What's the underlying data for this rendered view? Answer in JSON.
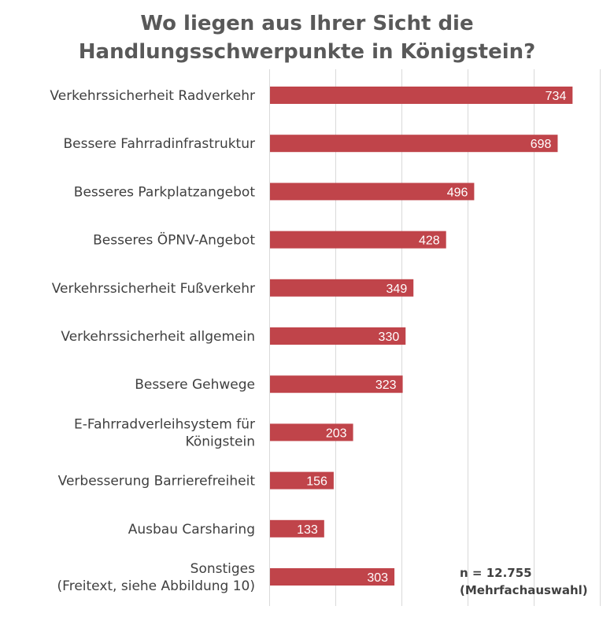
{
  "chart_data": {
    "type": "bar",
    "orientation": "horizontal",
    "title_lines": [
      "Wo liegen aus Ihrer Sicht die",
      "Handlungsschwerpunkte in Königstein?"
    ],
    "categories": [
      [
        "Verkehrssicherheit Radverkehr"
      ],
      [
        "Bessere Fahrradinfrastruktur"
      ],
      [
        "Besseres Parkplatzangebot"
      ],
      [
        "Besseres ÖPNV-Angebot"
      ],
      [
        "Verkehrssicherheit Fußverkehr"
      ],
      [
        "Verkehrssicherheit allgemein"
      ],
      [
        "Bessere Gehwege"
      ],
      [
        "E-Fahrradverleihsystem für",
        "Königstein"
      ],
      [
        "Verbesserung Barrierefreiheit"
      ],
      [
        "Ausbau Carsharing"
      ],
      [
        "Sonstiges",
        "(Freitext, siehe Abbildung 10)"
      ]
    ],
    "values": [
      734,
      698,
      496,
      428,
      349,
      330,
      323,
      203,
      156,
      133,
      303
    ],
    "xlim": [
      0,
      800
    ],
    "grid": true,
    "data_labels": true,
    "bar_color": "#c0444a",
    "gridline_color": "#d9d9d9"
  },
  "note": {
    "line1": "n = 12.755",
    "line2": "(Mehrfachauswahl)"
  }
}
